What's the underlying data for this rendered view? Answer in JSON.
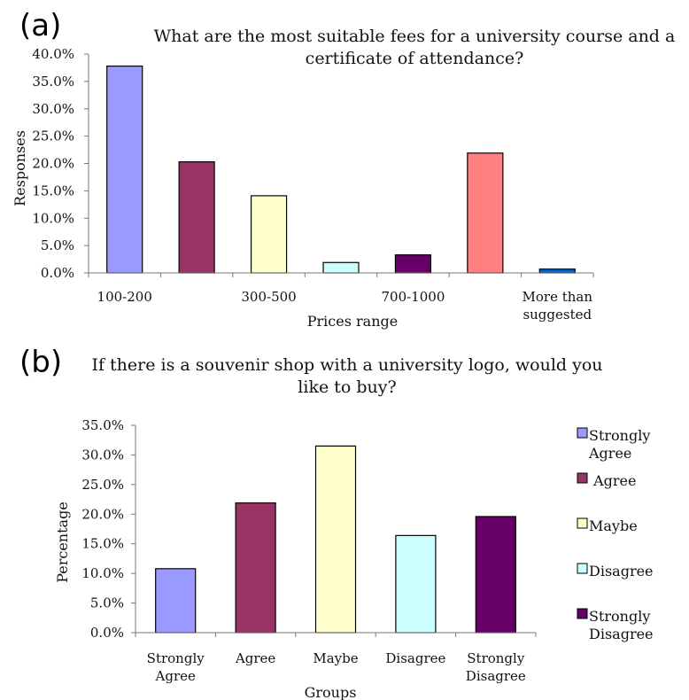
{
  "panels": [
    {
      "label": "(a)"
    },
    {
      "label": "(b)"
    }
  ],
  "chart_data": [
    {
      "type": "bar",
      "title_lines": [
        "What are the most suitable fees for a university course and a",
        "certificate of attendance?"
      ],
      "xlabel": "Prices range",
      "ylabel": "Responses",
      "ylim": [
        0,
        40
      ],
      "yticks": [
        "0.0%",
        "5.0%",
        "10.0%",
        "15.0%",
        "20.0%",
        "25.0%",
        "30.0%",
        "35.0%",
        "40.0%"
      ],
      "categories": [
        "100-200",
        "",
        "300-500",
        "",
        "700-1000",
        "",
        "More than suggested"
      ],
      "category_label_lines": [
        [
          "100-200"
        ],
        [],
        [
          "300-500"
        ],
        [],
        [
          "700-1000"
        ],
        [],
        [
          "More than",
          "suggested"
        ]
      ],
      "values": [
        37.8,
        20.3,
        14.1,
        1.9,
        3.3,
        21.9,
        0.7
      ],
      "colors": [
        "#9999ff",
        "#993366",
        "#ffffcc",
        "#ccffff",
        "#660066",
        "#ff8080",
        "#0066cc"
      ],
      "legend": "none",
      "grid": false
    },
    {
      "type": "bar",
      "title_lines": [
        "If there is a souvenir shop with a university logo, would you",
        "like to buy?"
      ],
      "xlabel": "Groups",
      "ylabel": "Percentage",
      "ylim": [
        0,
        35
      ],
      "yticks": [
        "0.0%",
        "5.0%",
        "10.0%",
        "15.0%",
        "20.0%",
        "25.0%",
        "30.0%",
        "35.0%"
      ],
      "categories": [
        "Strongly Agree",
        "Agree",
        "Maybe",
        "Disagree",
        "Strongly Disagree"
      ],
      "category_label_lines": [
        [
          "Strongly",
          "Agree"
        ],
        [
          "Agree"
        ],
        [
          "Maybe"
        ],
        [
          "Disagree"
        ],
        [
          "Strongly",
          "Disagree"
        ]
      ],
      "values": [
        10.8,
        21.9,
        31.5,
        16.4,
        19.6
      ],
      "colors": [
        "#9999ff",
        "#993366",
        "#ffffcc",
        "#ccffff",
        "#660066"
      ],
      "legend": "right",
      "legend_lines": [
        [
          "Strongly",
          "Agree"
        ],
        [
          " Agree"
        ],
        [
          "Maybe"
        ],
        [
          "Disagree"
        ],
        [
          "Strongly",
          "Disagree"
        ]
      ],
      "grid": false
    }
  ]
}
